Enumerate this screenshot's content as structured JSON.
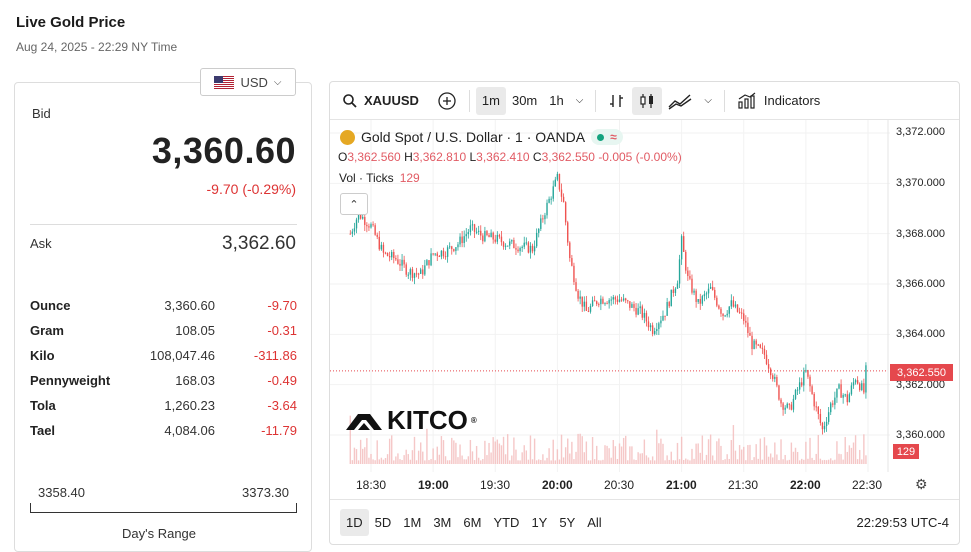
{
  "header": {
    "title": "Live Gold Price",
    "subtitle": "Aug 24, 2025 - 22:29 NY Time"
  },
  "currency": {
    "label": "USD",
    "icon": "us-flag-icon"
  },
  "quote": {
    "bid_label": "Bid",
    "bid": "3,360.60",
    "change": "-9.70 (-0.29%)",
    "ask_label": "Ask",
    "ask": "3,362.60"
  },
  "units": [
    {
      "name": "Ounce",
      "price": "3,360.60",
      "change": "-9.70"
    },
    {
      "name": "Gram",
      "price": "108.05",
      "change": "-0.31"
    },
    {
      "name": "Kilo",
      "price": "108,047.46",
      "change": "-311.86"
    },
    {
      "name": "Pennyweight",
      "price": "168.03",
      "change": "-0.49"
    },
    {
      "name": "Tola",
      "price": "1,260.23",
      "change": "-3.64"
    },
    {
      "name": "Tael",
      "price": "4,084.06",
      "change": "-11.79"
    }
  ],
  "range": {
    "low": "3358.40",
    "high": "3373.30",
    "label": "Day's Range"
  },
  "toolbar": {
    "symbol": "XAUUSD",
    "intervals": [
      "1m",
      "30m",
      "1h"
    ],
    "selected_interval": "1m",
    "indicators": "Indicators"
  },
  "legend": {
    "name": "Gold Spot / U.S. Dollar · 1 · OANDA",
    "o_label": "O",
    "o": "3,362.560",
    "h_label": "H",
    "h": "3,362.810",
    "l_label": "L",
    "l": "3,362.410",
    "c_label": "C",
    "c": "3,362.550",
    "chg": "-0.005 (-0.00%)",
    "vol_label": "Vol · Ticks",
    "vol": "129"
  },
  "y_ticks": [
    "3,372.000",
    "3,370.000",
    "3,368.000",
    "3,366.000",
    "3,364.000",
    "3,362.000",
    "3,360.000"
  ],
  "price_tag": "3,362.550",
  "vol_tag": "129",
  "x_ticks": [
    "18:30",
    "19:00",
    "19:30",
    "20:00",
    "20:30",
    "21:00",
    "21:30",
    "22:00",
    "22:30"
  ],
  "ranges": [
    "1D",
    "5D",
    "1M",
    "3M",
    "6M",
    "YTD",
    "1Y",
    "5Y",
    "All"
  ],
  "selected_range": "1D",
  "clock": "22:29:53 UTC-4",
  "logo": "KITCO",
  "colors": {
    "up": "#26a69a",
    "down": "#ef5350",
    "accent_red": "#e5484d"
  },
  "chart_data": {
    "type": "candlestick",
    "ylim": [
      3358.9,
      3372.2
    ],
    "y_ticks": [
      3360,
      3362,
      3364,
      3366,
      3368,
      3370,
      3372
    ],
    "x_ticks": [
      "18:30",
      "19:00",
      "19:30",
      "20:00",
      "20:30",
      "21:00",
      "21:30",
      "22:00",
      "22:30"
    ],
    "close_path": [
      [
        "18:20",
        3368.0
      ],
      [
        "18:24",
        3368.8
      ],
      [
        "18:30",
        3368.3
      ],
      [
        "18:36",
        3367.2
      ],
      [
        "18:42",
        3367.0
      ],
      [
        "18:48",
        3366.5
      ],
      [
        "18:54",
        3366.4
      ],
      [
        "19:00",
        3367.2
      ],
      [
        "19:06",
        3367.3
      ],
      [
        "19:12",
        3367.6
      ],
      [
        "19:18",
        3368.2
      ],
      [
        "19:24",
        3367.9
      ],
      [
        "19:30",
        3367.8
      ],
      [
        "19:36",
        3367.6
      ],
      [
        "19:42",
        3367.5
      ],
      [
        "19:48",
        3367.4
      ],
      [
        "19:54",
        3368.9
      ],
      [
        "20:00",
        3370.2
      ],
      [
        "20:03",
        3369.2
      ],
      [
        "20:06",
        3367.0
      ],
      [
        "20:10",
        3365.6
      ],
      [
        "20:14",
        3364.9
      ],
      [
        "20:20",
        3365.4
      ],
      [
        "20:30",
        3365.4
      ],
      [
        "20:40",
        3364.9
      ],
      [
        "20:46",
        3364.2
      ],
      [
        "20:52",
        3364.9
      ],
      [
        "20:58",
        3366.2
      ],
      [
        "21:00",
        3367.7
      ],
      [
        "21:03",
        3366.2
      ],
      [
        "21:08",
        3365.2
      ],
      [
        "21:14",
        3365.8
      ],
      [
        "21:20",
        3364.8
      ],
      [
        "21:24",
        3365.2
      ],
      [
        "21:30",
        3364.6
      ],
      [
        "21:34",
        3363.6
      ],
      [
        "21:40",
        3363.2
      ],
      [
        "21:44",
        3362.4
      ],
      [
        "21:48",
        3361.3
      ],
      [
        "21:52",
        3361.0
      ],
      [
        "21:56",
        3361.8
      ],
      [
        "22:00",
        3362.5
      ],
      [
        "22:04",
        3361.3
      ],
      [
        "22:08",
        3360.2
      ],
      [
        "22:12",
        3361.2
      ],
      [
        "22:16",
        3361.8
      ],
      [
        "22:20",
        3361.4
      ],
      [
        "22:24",
        3362.3
      ],
      [
        "22:28",
        3361.7
      ],
      [
        "22:29",
        3362.55
      ]
    ],
    "last_price": 3362.55,
    "last_volume": 129
  }
}
